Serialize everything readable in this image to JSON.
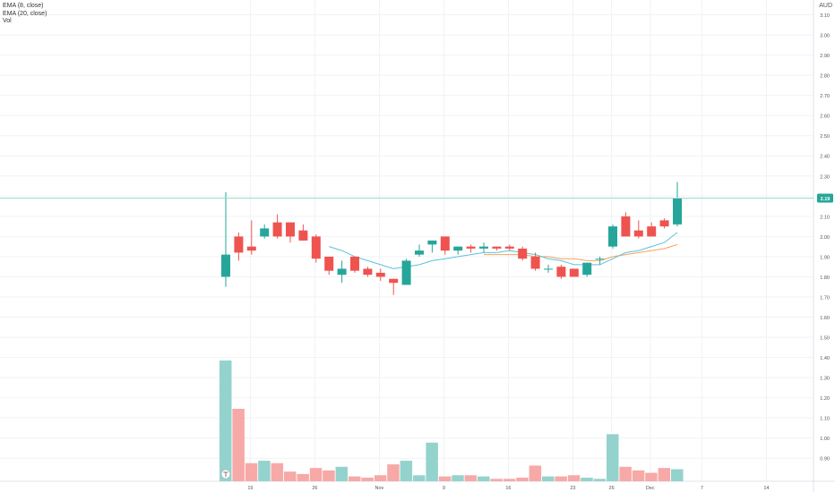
{
  "legend": {
    "ema8": "EMA (8, close)",
    "ema20": "EMA (20, close)",
    "vol": "Vol"
  },
  "currency": "AUD",
  "colors": {
    "up": "#26a69a",
    "down": "#ef5350",
    "vol_up": "#94d3cd",
    "vol_down": "#f7a9a7",
    "ema8": "#5bc0de",
    "ema20": "#f5a25d",
    "last_price_line": "#9ed9d3"
  },
  "chart_data": {
    "type": "candlestick",
    "x_labels": [
      "19",
      "26",
      "Nov",
      "9",
      "16",
      "23",
      "26",
      "Dec",
      "7",
      "14"
    ],
    "x_label_positions_bar_index": [
      1,
      6,
      11,
      16,
      21,
      26,
      29,
      32,
      36,
      41
    ],
    "y_ticks": [
      "3.10",
      "3.00",
      "2.90",
      "2.80",
      "2.70",
      "2.60",
      "2.50",
      "2.40",
      "2.30",
      "2.20",
      "2.10",
      "2.00",
      "1.90",
      "1.80",
      "1.70",
      "1.60",
      "1.50",
      "1.40",
      "1.30",
      "1.20",
      "1.10",
      "1.00",
      "0.90"
    ],
    "ylim": [
      0.85,
      3.12
    ],
    "last_price": "2.19",
    "candles": [
      {
        "o": 1.8,
        "h": 2.22,
        "l": 1.75,
        "c": 1.91
      },
      {
        "o": 2.0,
        "h": 2.02,
        "l": 1.88,
        "c": 1.92
      },
      {
        "o": 1.95,
        "h": 2.08,
        "l": 1.91,
        "c": 1.93
      },
      {
        "o": 2.0,
        "h": 2.06,
        "l": 1.99,
        "c": 2.04
      },
      {
        "o": 2.07,
        "h": 2.11,
        "l": 1.99,
        "c": 2.0
      },
      {
        "o": 2.07,
        "h": 2.07,
        "l": 1.97,
        "c": 2.0
      },
      {
        "o": 2.03,
        "h": 2.06,
        "l": 1.98,
        "c": 1.98
      },
      {
        "o": 2.0,
        "h": 2.01,
        "l": 1.87,
        "c": 1.89
      },
      {
        "o": 1.9,
        "h": 1.9,
        "l": 1.81,
        "c": 1.83
      },
      {
        "o": 1.81,
        "h": 1.88,
        "l": 1.77,
        "c": 1.84
      },
      {
        "o": 1.9,
        "h": 1.9,
        "l": 1.82,
        "c": 1.83
      },
      {
        "o": 1.84,
        "h": 1.85,
        "l": 1.8,
        "c": 1.81
      },
      {
        "o": 1.82,
        "h": 1.84,
        "l": 1.78,
        "c": 1.8
      },
      {
        "o": 1.79,
        "h": 1.79,
        "l": 1.71,
        "c": 1.77
      },
      {
        "o": 1.76,
        "h": 1.89,
        "l": 1.76,
        "c": 1.88
      },
      {
        "o": 1.91,
        "h": 1.96,
        "l": 1.9,
        "c": 1.93
      },
      {
        "o": 1.96,
        "h": 1.97,
        "l": 1.92,
        "c": 1.98
      },
      {
        "o": 2.0,
        "h": 2.0,
        "l": 1.91,
        "c": 1.93
      },
      {
        "o": 1.93,
        "h": 1.95,
        "l": 1.91,
        "c": 1.95
      },
      {
        "o": 1.95,
        "h": 1.96,
        "l": 1.92,
        "c": 1.94
      },
      {
        "o": 1.94,
        "h": 1.97,
        "l": 1.92,
        "c": 1.95
      },
      {
        "o": 1.95,
        "h": 1.95,
        "l": 1.93,
        "c": 1.94
      },
      {
        "o": 1.95,
        "h": 1.96,
        "l": 1.93,
        "c": 1.94
      },
      {
        "o": 1.94,
        "h": 1.95,
        "l": 1.88,
        "c": 1.89
      },
      {
        "o": 1.9,
        "h": 1.92,
        "l": 1.83,
        "c": 1.84
      },
      {
        "o": 1.84,
        "h": 1.86,
        "l": 1.82,
        "c": 1.84
      },
      {
        "o": 1.85,
        "h": 1.86,
        "l": 1.79,
        "c": 1.8
      },
      {
        "o": 1.84,
        "h": 1.84,
        "l": 1.8,
        "c": 1.8
      },
      {
        "o": 1.81,
        "h": 1.87,
        "l": 1.8,
        "c": 1.87
      },
      {
        "o": 1.89,
        "h": 1.9,
        "l": 1.86,
        "c": 1.89
      },
      {
        "o": 1.95,
        "h": 2.06,
        "l": 1.94,
        "c": 2.05
      },
      {
        "o": 2.1,
        "h": 2.12,
        "l": 2.0,
        "c": 2.0
      },
      {
        "o": 2.03,
        "h": 2.08,
        "l": 1.99,
        "c": 2.0
      },
      {
        "o": 2.05,
        "h": 2.07,
        "l": 2.0,
        "c": 2.0
      },
      {
        "o": 2.08,
        "h": 2.09,
        "l": 2.04,
        "c": 2.05
      },
      {
        "o": 2.06,
        "h": 2.27,
        "l": 2.05,
        "c": 2.19
      }
    ],
    "volume_scale_max": 1.0,
    "volume": [
      1.0,
      0.6,
      0.15,
      0.17,
      0.15,
      0.08,
      0.06,
      0.11,
      0.09,
      0.12,
      0.04,
      0.03,
      0.05,
      0.14,
      0.17,
      0.05,
      0.32,
      0.04,
      0.05,
      0.05,
      0.04,
      0.02,
      0.02,
      0.03,
      0.13,
      0.04,
      0.04,
      0.05,
      0.03,
      0.02,
      0.39,
      0.12,
      0.09,
      0.07,
      0.11,
      0.1
    ],
    "ema8": [
      null,
      null,
      null,
      null,
      null,
      null,
      null,
      null,
      1.95,
      1.93,
      1.9,
      1.88,
      1.86,
      1.84,
      1.85,
      1.86,
      1.88,
      1.89,
      1.9,
      1.91,
      1.92,
      1.92,
      1.93,
      1.92,
      1.91,
      1.89,
      1.88,
      1.86,
      1.86,
      1.86,
      1.89,
      1.92,
      1.93,
      1.95,
      1.97,
      2.02
    ],
    "ema20": [
      null,
      null,
      null,
      null,
      null,
      null,
      null,
      null,
      null,
      null,
      null,
      null,
      null,
      null,
      null,
      null,
      null,
      null,
      null,
      null,
      1.91,
      1.91,
      1.91,
      1.91,
      1.9,
      1.9,
      1.89,
      1.89,
      1.88,
      1.88,
      1.9,
      1.91,
      1.92,
      1.93,
      1.94,
      1.96
    ]
  }
}
